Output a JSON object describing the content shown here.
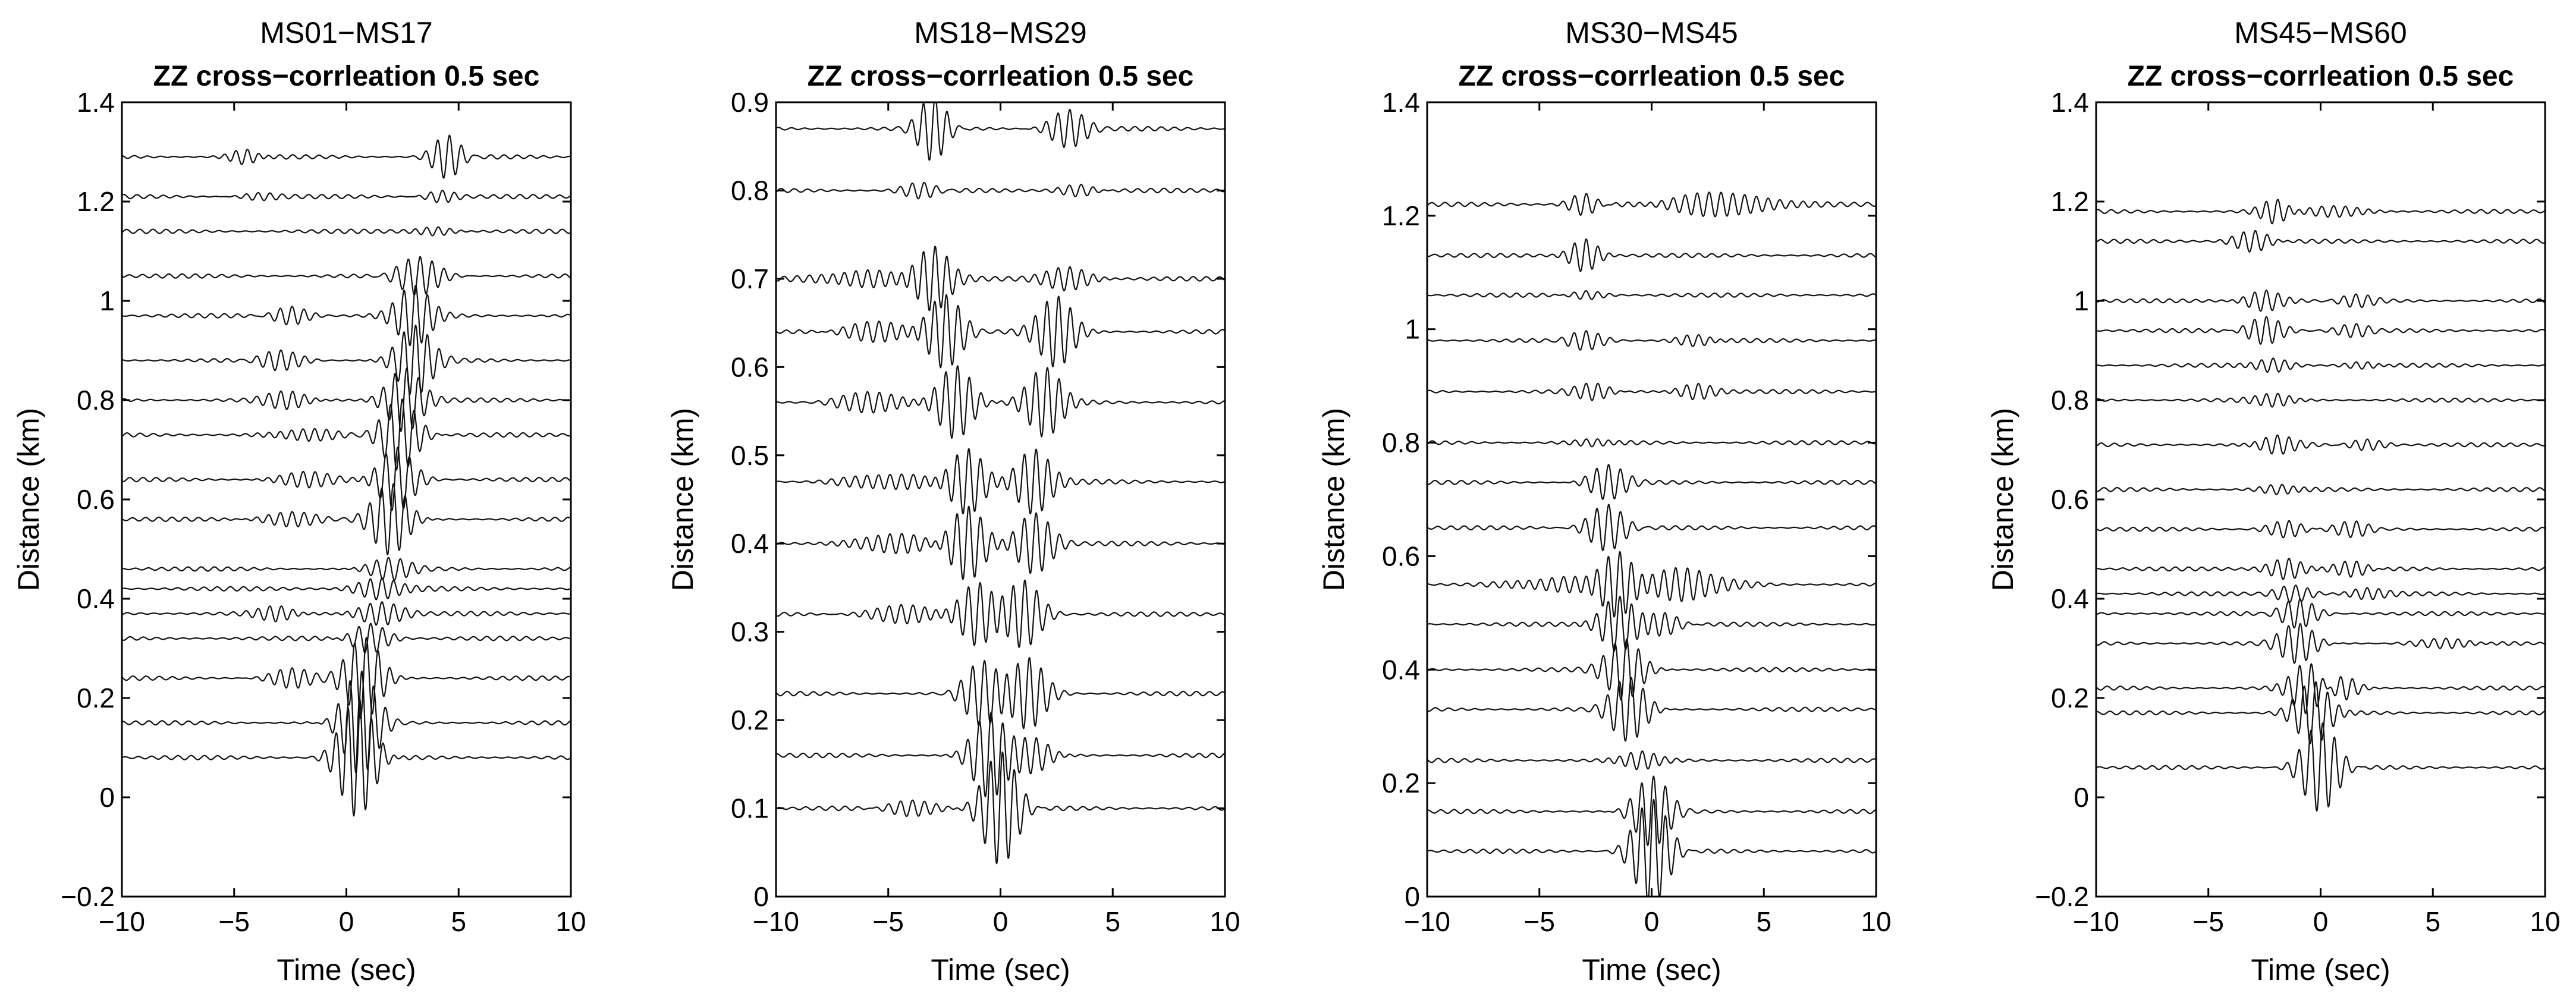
{
  "figure": {
    "background": "#ffffff",
    "trace_color": "#111111"
  },
  "chart_data": [
    {
      "type": "line",
      "title": "MS01−MS17",
      "subtitle": "ZZ cross−corrleation 0.5 sec",
      "xlabel": "Time (sec)",
      "ylabel": "Distance (km)",
      "xlim": [
        -10,
        10
      ],
      "ylim": [
        -0.2,
        1.4
      ],
      "xticks": [
        -10,
        -5,
        0,
        5,
        10
      ],
      "xtick_labels": [
        "−10",
        "−5",
        "0",
        "5",
        "10"
      ],
      "yticks": [
        -0.2,
        0,
        0.2,
        0.4,
        0.6,
        0.8,
        1.0,
        1.2,
        1.4
      ],
      "ytick_labels": [
        "−0.2",
        "0",
        "0.2",
        "0.4",
        "0.6",
        "0.8",
        "1",
        "1.2",
        "1.4"
      ],
      "traces": [
        {
          "distance": 0.08,
          "amplitude": 0.12,
          "packets": [
            [
              0.5,
              1.0,
              1.0
            ]
          ]
        },
        {
          "distance": 0.15,
          "amplitude": 0.12,
          "packets": [
            [
              0.6,
              1.0,
              0.85
            ]
          ]
        },
        {
          "distance": 0.24,
          "amplitude": 0.12,
          "packets": [
            [
              0.8,
              1.0,
              0.7
            ],
            [
              -2.5,
              1.2,
              0.15
            ]
          ]
        },
        {
          "distance": 0.32,
          "amplitude": 0.12,
          "packets": [
            [
              1.0,
              1.0,
              0.25
            ]
          ]
        },
        {
          "distance": 0.37,
          "amplitude": 0.12,
          "packets": [
            [
              1.5,
              1.2,
              0.2
            ],
            [
              -3.0,
              1.0,
              0.15
            ]
          ]
        },
        {
          "distance": 0.42,
          "amplitude": 0.12,
          "packets": [
            [
              1.5,
              1.2,
              0.2
            ]
          ]
        },
        {
          "distance": 0.46,
          "amplitude": 0.12,
          "packets": [
            [
              1.8,
              1.2,
              0.18
            ]
          ]
        },
        {
          "distance": 0.56,
          "amplitude": 0.12,
          "packets": [
            [
              2.0,
              1.0,
              0.6
            ],
            [
              -2.5,
              1.5,
              0.12
            ]
          ]
        },
        {
          "distance": 0.64,
          "amplitude": 0.12,
          "packets": [
            [
              2.2,
              1.0,
              0.55
            ],
            [
              -2.0,
              1.5,
              0.12
            ]
          ]
        },
        {
          "distance": 0.73,
          "amplitude": 0.12,
          "packets": [
            [
              2.4,
              1.0,
              0.6
            ],
            [
              -2.0,
              1.5,
              0.12
            ]
          ]
        },
        {
          "distance": 0.8,
          "amplitude": 0.12,
          "packets": [
            [
              2.6,
              1.0,
              0.55
            ],
            [
              -2.5,
              1.2,
              0.15
            ]
          ]
        },
        {
          "distance": 0.88,
          "amplitude": 0.12,
          "packets": [
            [
              3.0,
              1.0,
              0.6
            ],
            [
              -3.0,
              1.2,
              0.15
            ]
          ]
        },
        {
          "distance": 0.97,
          "amplitude": 0.12,
          "packets": [
            [
              3.0,
              1.0,
              0.55
            ],
            [
              -2.5,
              1.0,
              0.15
            ]
          ]
        },
        {
          "distance": 1.05,
          "amplitude": 0.12,
          "packets": [
            [
              3.2,
              1.2,
              0.3
            ]
          ]
        },
        {
          "distance": 1.14,
          "amplitude": 0.12,
          "packets": [
            [
              4.0,
              1.0,
              0.08
            ]
          ]
        },
        {
          "distance": 1.21,
          "amplitude": 0.12,
          "packets": [
            [
              4.2,
              0.8,
              0.1
            ],
            [
              -4.0,
              1.0,
              0.06
            ]
          ]
        },
        {
          "distance": 1.29,
          "amplitude": 0.12,
          "packets": [
            [
              4.5,
              0.8,
              0.35
            ],
            [
              -4.5,
              0.8,
              0.15
            ]
          ]
        }
      ]
    },
    {
      "type": "line",
      "title": "MS18−MS29",
      "subtitle": "ZZ cross−corrleation 0.5 sec",
      "xlabel": "Time (sec)",
      "ylabel": "Distance (km)",
      "xlim": [
        -10,
        10
      ],
      "ylim": [
        0,
        0.9
      ],
      "xticks": [
        -10,
        -5,
        0,
        5,
        10
      ],
      "xtick_labels": [
        "−10",
        "−5",
        "0",
        "5",
        "10"
      ],
      "yticks": [
        0,
        0.1,
        0.2,
        0.3,
        0.4,
        0.5,
        0.6,
        0.7,
        0.8,
        0.9
      ],
      "ytick_labels": [
        "0",
        "0.1",
        "0.2",
        "0.3",
        "0.4",
        "0.5",
        "0.6",
        "0.7",
        "0.8",
        "0.9"
      ],
      "traces": [
        {
          "distance": 0.1,
          "amplitude": 0.07,
          "packets": [
            [
              0.0,
              1.0,
              0.9
            ],
            [
              -4.0,
              1.5,
              0.12
            ]
          ]
        },
        {
          "distance": 0.16,
          "amplitude": 0.07,
          "packets": [
            [
              -0.5,
              1.0,
              0.7
            ],
            [
              1.5,
              1.0,
              0.3
            ]
          ]
        },
        {
          "distance": 0.23,
          "amplitude": 0.07,
          "packets": [
            [
              -0.8,
              1.0,
              0.5
            ],
            [
              1.2,
              1.0,
              0.6
            ]
          ]
        },
        {
          "distance": 0.32,
          "amplitude": 0.07,
          "packets": [
            [
              -1.0,
              1.0,
              0.5
            ],
            [
              1.0,
              1.0,
              0.55
            ],
            [
              -4.0,
              2.0,
              0.15
            ]
          ]
        },
        {
          "distance": 0.4,
          "amplitude": 0.07,
          "packets": [
            [
              -1.5,
              1.0,
              0.6
            ],
            [
              1.5,
              1.0,
              0.5
            ],
            [
              -5.0,
              2.0,
              0.15
            ]
          ]
        },
        {
          "distance": 0.47,
          "amplitude": 0.07,
          "packets": [
            [
              -1.5,
              1.0,
              0.55
            ],
            [
              1.5,
              1.0,
              0.55
            ],
            [
              -5.0,
              2.0,
              0.15
            ]
          ]
        },
        {
          "distance": 0.56,
          "amplitude": 0.07,
          "packets": [
            [
              -2.0,
              1.0,
              0.6
            ],
            [
              2.0,
              1.0,
              0.6
            ],
            [
              -5.5,
              2.0,
              0.15
            ]
          ]
        },
        {
          "distance": 0.64,
          "amplitude": 0.07,
          "packets": [
            [
              -2.5,
              1.0,
              0.6
            ],
            [
              2.5,
              1.0,
              0.6
            ],
            [
              -5.5,
              2.0,
              0.15
            ]
          ]
        },
        {
          "distance": 0.7,
          "amplitude": 0.07,
          "packets": [
            [
              -3.0,
              1.0,
              0.55
            ],
            [
              3.0,
              1.2,
              0.2
            ],
            [
              -6.0,
              2.0,
              0.15
            ]
          ]
        },
        {
          "distance": 0.8,
          "amplitude": 0.07,
          "packets": [
            [
              -3.5,
              1.0,
              0.12
            ],
            [
              3.5,
              1.0,
              0.1
            ]
          ]
        },
        {
          "distance": 0.87,
          "amplitude": 0.07,
          "packets": [
            [
              -3.0,
              0.8,
              0.5
            ],
            [
              3.0,
              1.0,
              0.3
            ]
          ]
        }
      ]
    },
    {
      "type": "line",
      "title": "MS30−MS45",
      "subtitle": "ZZ cross−corrleation 0.5 sec",
      "xlabel": "Time (sec)",
      "ylabel": "Distance (km)",
      "xlim": [
        -10,
        10
      ],
      "ylim": [
        0,
        1.4
      ],
      "xticks": [
        -10,
        -5,
        0,
        5,
        10
      ],
      "xtick_labels": [
        "−10",
        "−5",
        "0",
        "5",
        "10"
      ],
      "yticks": [
        0,
        0.2,
        0.4,
        0.6,
        0.8,
        1.0,
        1.2,
        1.4
      ],
      "ytick_labels": [
        "0",
        "0.2",
        "0.4",
        "0.6",
        "0.8",
        "1",
        "1.2",
        "1.4"
      ],
      "traces": [
        {
          "distance": 0.08,
          "amplitude": 0.1,
          "packets": [
            [
              0.0,
              1.0,
              0.9
            ]
          ]
        },
        {
          "distance": 0.15,
          "amplitude": 0.1,
          "packets": [
            [
              0.0,
              1.0,
              0.6
            ]
          ]
        },
        {
          "distance": 0.24,
          "amplitude": 0.1,
          "packets": [
            [
              -0.5,
              1.0,
              0.2
            ]
          ]
        },
        {
          "distance": 0.33,
          "amplitude": 0.1,
          "packets": [
            [
              -1.0,
              1.0,
              0.55
            ]
          ]
        },
        {
          "distance": 0.4,
          "amplitude": 0.1,
          "packets": [
            [
              -1.2,
              1.0,
              0.55
            ]
          ]
        },
        {
          "distance": 0.48,
          "amplitude": 0.1,
          "packets": [
            [
              -1.5,
              1.0,
              0.5
            ],
            [
              0.5,
              1.0,
              0.2
            ]
          ]
        },
        {
          "distance": 0.55,
          "amplitude": 0.1,
          "packets": [
            [
              -1.5,
              1.0,
              0.6
            ],
            [
              1.5,
              2.0,
              0.3
            ],
            [
              -4.0,
              2.0,
              0.15
            ]
          ]
        },
        {
          "distance": 0.65,
          "amplitude": 0.1,
          "packets": [
            [
              -2.0,
              1.0,
              0.4
            ]
          ]
        },
        {
          "distance": 0.73,
          "amplitude": 0.1,
          "packets": [
            [
              -2.0,
              1.0,
              0.3
            ]
          ]
        },
        {
          "distance": 0.8,
          "amplitude": 0.1,
          "packets": [
            [
              -2.5,
              1.0,
              0.1
            ]
          ]
        },
        {
          "distance": 0.89,
          "amplitude": 0.1,
          "packets": [
            [
              -2.5,
              1.0,
              0.15
            ],
            [
              2.0,
              1.0,
              0.15
            ]
          ]
        },
        {
          "distance": 0.98,
          "amplitude": 0.1,
          "packets": [
            [
              -3.0,
              1.0,
              0.15
            ],
            [
              2.0,
              1.0,
              0.12
            ]
          ]
        },
        {
          "distance": 1.06,
          "amplitude": 0.1,
          "packets": [
            [
              -3.0,
              1.0,
              0.08
            ]
          ]
        },
        {
          "distance": 1.13,
          "amplitude": 0.1,
          "packets": [
            [
              -3.0,
              0.8,
              0.3
            ]
          ]
        },
        {
          "distance": 1.22,
          "amplitude": 0.1,
          "packets": [
            [
              -3.0,
              0.8,
              0.2
            ],
            [
              3.0,
              3.0,
              0.2
            ]
          ]
        }
      ]
    },
    {
      "type": "line",
      "title": "MS45−MS60",
      "subtitle": "ZZ cross−corrleation 0.5 sec",
      "xlabel": "Time (sec)",
      "ylabel": "Distance (km)",
      "xlim": [
        -10,
        10
      ],
      "ylim": [
        -0.2,
        1.4
      ],
      "xticks": [
        -10,
        -5,
        0,
        5,
        10
      ],
      "xtick_labels": [
        "−10",
        "−5",
        "0",
        "5",
        "10"
      ],
      "yticks": [
        -0.2,
        0,
        0.2,
        0.4,
        0.6,
        0.8,
        1.0,
        1.2,
        1.4
      ],
      "ytick_labels": [
        "−0.2",
        "0",
        "0.2",
        "0.4",
        "0.6",
        "0.8",
        "1",
        "1.2",
        "1.4"
      ],
      "traces": [
        {
          "distance": 0.06,
          "amplitude": 0.11,
          "packets": [
            [
              0.0,
              1.0,
              0.8
            ]
          ]
        },
        {
          "distance": 0.17,
          "amplitude": 0.11,
          "packets": [
            [
              -0.3,
              1.0,
              0.6
            ]
          ]
        },
        {
          "distance": 0.22,
          "amplitude": 0.11,
          "packets": [
            [
              -0.5,
              1.0,
              0.55
            ],
            [
              0.8,
              1.0,
              0.3
            ]
          ]
        },
        {
          "distance": 0.31,
          "amplitude": 0.11,
          "packets": [
            [
              -1.0,
              1.0,
              0.35
            ],
            [
              6.0,
              2.0,
              0.08
            ]
          ]
        },
        {
          "distance": 0.37,
          "amplitude": 0.11,
          "packets": [
            [
              -1.0,
              1.0,
              0.25
            ]
          ]
        },
        {
          "distance": 0.41,
          "amplitude": 0.11,
          "packets": [
            [
              -1.2,
              1.0,
              0.15
            ],
            [
              2.0,
              1.0,
              0.12
            ]
          ]
        },
        {
          "distance": 0.46,
          "amplitude": 0.11,
          "packets": [
            [
              -1.5,
              1.0,
              0.2
            ],
            [
              1.5,
              1.0,
              0.15
            ]
          ]
        },
        {
          "distance": 0.54,
          "amplitude": 0.11,
          "packets": [
            [
              -1.5,
              1.0,
              0.15
            ],
            [
              1.5,
              1.0,
              0.12
            ]
          ]
        },
        {
          "distance": 0.62,
          "amplitude": 0.11,
          "packets": [
            [
              -1.8,
              1.0,
              0.12
            ]
          ]
        },
        {
          "distance": 0.71,
          "amplitude": 0.11,
          "packets": [
            [
              -2.0,
              1.0,
              0.2
            ],
            [
              2.0,
              1.0,
              0.1
            ]
          ]
        },
        {
          "distance": 0.8,
          "amplitude": 0.11,
          "packets": [
            [
              -2.0,
              1.0,
              0.15
            ]
          ]
        },
        {
          "distance": 0.87,
          "amplitude": 0.11,
          "packets": [
            [
              -2.2,
              1.0,
              0.15
            ],
            [
              2.0,
              1.0,
              0.08
            ]
          ]
        },
        {
          "distance": 0.94,
          "amplitude": 0.11,
          "packets": [
            [
              -2.5,
              1.0,
              0.25
            ],
            [
              1.5,
              1.0,
              0.1
            ]
          ]
        },
        {
          "distance": 1.0,
          "amplitude": 0.11,
          "packets": [
            [
              -2.5,
              1.0,
              0.2
            ],
            [
              1.5,
              1.0,
              0.1
            ]
          ]
        },
        {
          "distance": 1.12,
          "amplitude": 0.11,
          "packets": [
            [
              -3.0,
              1.0,
              0.2
            ]
          ]
        },
        {
          "distance": 1.18,
          "amplitude": 0.11,
          "packets": [
            [
              -2.0,
              0.8,
              0.25
            ],
            [
              1.0,
              1.5,
              0.1
            ]
          ]
        }
      ]
    }
  ]
}
